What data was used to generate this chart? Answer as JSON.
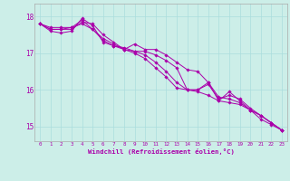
{
  "xlabel": "Windchill (Refroidissement éolien,°C)",
  "bg_color": "#cceee8",
  "line_color": "#aa00aa",
  "x_ticks": [
    0,
    1,
    2,
    3,
    4,
    5,
    6,
    7,
    8,
    9,
    10,
    11,
    12,
    13,
    14,
    15,
    16,
    17,
    18,
    19,
    20,
    21,
    22,
    23
  ],
  "y_ticks": [
    15,
    16,
    17,
    18
  ],
  "ylim": [
    14.6,
    18.35
  ],
  "xlim": [
    -0.5,
    23.5
  ],
  "series": [
    [
      17.8,
      17.6,
      17.55,
      17.6,
      17.95,
      17.75,
      17.3,
      17.2,
      17.15,
      17.05,
      17.05,
      16.95,
      16.8,
      16.6,
      16.0,
      16.0,
      16.15,
      15.75,
      15.85,
      15.75,
      15.5,
      15.3,
      15.1,
      14.9
    ],
    [
      17.8,
      17.65,
      17.65,
      17.65,
      17.85,
      17.8,
      17.5,
      17.3,
      17.1,
      17.25,
      17.1,
      17.1,
      16.95,
      16.75,
      16.55,
      16.5,
      16.2,
      15.7,
      15.95,
      15.7,
      15.45,
      15.3,
      15.1,
      14.9
    ],
    [
      17.8,
      17.7,
      17.7,
      17.7,
      17.8,
      17.65,
      17.4,
      17.25,
      17.1,
      17.05,
      16.95,
      16.75,
      16.5,
      16.2,
      16.0,
      15.95,
      15.85,
      15.7,
      15.65,
      15.6,
      15.45,
      15.2,
      15.05,
      14.9
    ],
    [
      17.8,
      17.65,
      17.65,
      17.7,
      17.9,
      17.65,
      17.35,
      17.2,
      17.1,
      17.0,
      16.85,
      16.6,
      16.35,
      16.05,
      16.0,
      16.0,
      16.2,
      15.8,
      15.75,
      15.65,
      15.45,
      15.3,
      15.1,
      14.9
    ]
  ]
}
